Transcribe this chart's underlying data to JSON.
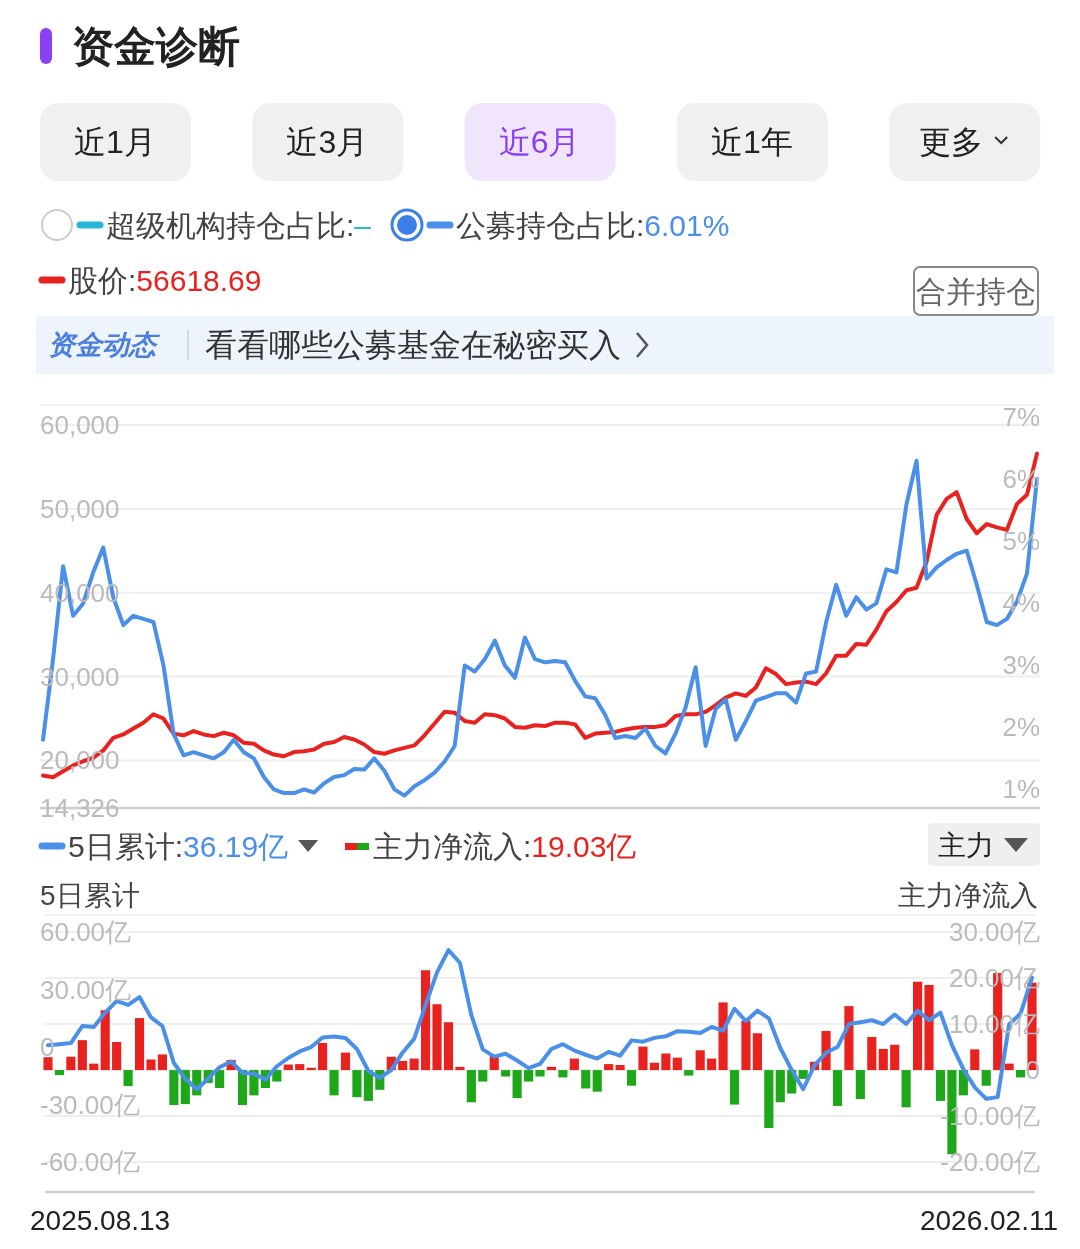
{
  "chart_data": [
    {
      "type": "other",
      "title": "资金诊断",
      "annotations": [
        "近1月",
        "近3月",
        "近6月",
        "近1年",
        "更多",
        "合并持仓",
        "资金动态",
        "看看哪些公募基金在秘密买入"
      ]
    },
    {
      "type": "line",
      "legend": "top",
      "grid": true,
      "categories": [
        null,
        null,
        null,
        null,
        null,
        null,
        null,
        null,
        null,
        null,
        null,
        null,
        null,
        null,
        null,
        null,
        null,
        null,
        null,
        null,
        null,
        null,
        null,
        null,
        null,
        null,
        null,
        null,
        null,
        null,
        null,
        null,
        null,
        null,
        null,
        null,
        null,
        null,
        null,
        null,
        null,
        null,
        null,
        null,
        null,
        null,
        null,
        null,
        null,
        null,
        null,
        null,
        null,
        null,
        null,
        null,
        null,
        null,
        null,
        null,
        null,
        null,
        null,
        null,
        null,
        null,
        null,
        null,
        null,
        null,
        null,
        null,
        null,
        null,
        null,
        null,
        null,
        null,
        null,
        null,
        null,
        null,
        null,
        null,
        null,
        null,
        null,
        null,
        null,
        null,
        null,
        null,
        null,
        null,
        null,
        null,
        null,
        null,
        null,
        null
      ],
      "ylim": [
        14326,
        62400
      ],
      "yticks": [
        {
          "value": 14326,
          "label": "14,326"
        },
        {
          "value": 20000,
          "label": "20,000"
        },
        {
          "value": 30000,
          "label": "30,000"
        },
        {
          "value": 40000,
          "label": "40,000"
        },
        {
          "value": 50000,
          "label": "50,000"
        },
        {
          "value": 60000,
          "label": "60,000"
        }
      ],
      "y2lim": [
        0.7,
        7.2
      ],
      "y2ticks": [
        {
          "value": 1,
          "label": "1%"
        },
        {
          "value": 2,
          "label": "2%"
        },
        {
          "value": 3,
          "label": "3%"
        },
        {
          "value": 4,
          "label": "4%"
        },
        {
          "value": 5,
          "label": "5%"
        },
        {
          "value": 6,
          "label": "6%"
        },
        {
          "value": 7,
          "label": "7%"
        }
      ],
      "series": [
        {
          "name": "股价:56618.69",
          "color": "#e8231f",
          "values": [
            18200,
            18000,
            18700,
            19400,
            19900,
            20300,
            21200,
            22700,
            23100,
            23800,
            24500,
            25500,
            25000,
            23200,
            23000,
            23500,
            23100,
            22900,
            23300,
            23000,
            22100,
            22000,
            21200,
            20700,
            20500,
            21000,
            21100,
            21300,
            22000,
            22200,
            22800,
            22500,
            21900,
            21000,
            20800,
            21200,
            21500,
            21800,
            23000,
            24400,
            25800,
            25700,
            24700,
            24500,
            25500,
            25400,
            25000,
            24000,
            23900,
            24200,
            24100,
            24500,
            24500,
            24300,
            22700,
            23200,
            23300,
            23400,
            23700,
            23900,
            24000,
            24000,
            24200,
            25300,
            25500,
            25500,
            25800,
            26600,
            27500,
            28000,
            27700,
            28700,
            31000,
            30300,
            29100,
            29300,
            29400,
            29100,
            30400,
            32500,
            32500,
            33900,
            33800,
            35600,
            37800,
            38900,
            40300,
            40600,
            43700,
            49300,
            51200,
            52000,
            48800,
            47100,
            48200,
            47800,
            47500,
            50600,
            51700,
            56600
          ]
        },
        {
          "name": "超级机构持仓占比:–",
          "color": "#2ab6d6",
          "axis": "y2",
          "values": [
            null,
            null,
            null,
            null,
            null,
            null,
            null,
            null,
            null,
            null,
            null,
            null,
            null,
            null,
            null,
            null,
            null,
            null,
            null,
            null,
            null,
            null,
            null,
            null,
            null,
            null,
            null,
            null,
            null,
            null,
            null,
            null,
            null,
            null,
            null,
            null,
            null,
            null,
            null,
            null,
            null,
            null,
            null,
            null,
            null,
            null,
            null,
            null,
            null,
            null,
            null,
            null,
            null,
            null,
            null,
            null,
            null,
            null,
            null,
            null,
            null,
            null,
            null,
            null,
            null,
            null,
            null,
            null,
            null,
            null,
            null,
            null,
            null,
            null,
            null,
            null,
            null,
            null,
            null,
            null,
            null,
            null,
            null,
            null,
            null,
            null,
            null,
            null,
            null,
            null,
            null,
            null,
            null,
            null,
            null,
            null,
            null,
            null,
            null,
            null
          ]
        },
        {
          "name": "公募持仓占比:6.01%",
          "color": "#4a8fe8",
          "axis": "y2",
          "values": [
            1.8,
            3.1,
            4.6,
            3.8,
            4.0,
            4.5,
            4.9,
            4.1,
            3.65,
            3.8,
            3.75,
            3.7,
            3.0,
            1.9,
            1.55,
            1.6,
            1.55,
            1.5,
            1.6,
            1.8,
            1.6,
            1.5,
            1.2,
            1.0,
            0.94,
            0.94,
            1.0,
            0.95,
            1.1,
            1.2,
            1.23,
            1.33,
            1.32,
            1.5,
            1.3,
            1.0,
            0.9,
            1.05,
            1.15,
            1.27,
            1.45,
            1.7,
            3.0,
            2.9,
            3.1,
            3.4,
            3.0,
            2.8,
            3.45,
            3.1,
            3.05,
            3.07,
            3.05,
            2.75,
            2.5,
            2.47,
            2.2,
            1.83,
            1.86,
            1.83,
            1.98,
            1.7,
            1.58,
            1.9,
            2.32,
            2.97,
            1.7,
            2.3,
            2.45,
            1.8,
            2.1,
            2.43,
            2.49,
            2.55,
            2.55,
            2.4,
            2.87,
            2.9,
            3.7,
            4.3,
            3.8,
            4.1,
            3.9,
            4.0,
            4.55,
            4.5,
            5.6,
            6.3,
            4.4,
            4.58,
            4.7,
            4.8,
            4.85,
            4.3,
            3.7,
            3.65,
            3.75,
            4.03,
            4.48,
            6.01
          ]
        }
      ]
    },
    {
      "type": "bar",
      "legend": "top",
      "grid": true,
      "ylabel": "5日累计",
      "y2label": "主力净流入",
      "annotations": [
        "主力",
        "2025.08.13",
        "2026.02.11"
      ],
      "categories": [
        null,
        null,
        null,
        null,
        null,
        null,
        null,
        null,
        null,
        null,
        null,
        null,
        null,
        null,
        null,
        null,
        null,
        null,
        null,
        null,
        null,
        null,
        null,
        null,
        null,
        null,
        null,
        null,
        null,
        null,
        null,
        null,
        null,
        null,
        null,
        null,
        null,
        null,
        null,
        null,
        null,
        null,
        null,
        null,
        null,
        null,
        null,
        null,
        null,
        null,
        null,
        null,
        null,
        null,
        null,
        null,
        null,
        null,
        null,
        null,
        null,
        null,
        null,
        null,
        null,
        null,
        null,
        null,
        null,
        null,
        null,
        null,
        null,
        null,
        null,
        null,
        null,
        null,
        null,
        null,
        null,
        null,
        null,
        null,
        null,
        null,
        null
      ],
      "ylim": [
        -75.6,
        68.9
      ],
      "yticks": [
        {
          "value": -60,
          "label": "-60.00亿"
        },
        {
          "value": -30,
          "label": "-30.00亿"
        },
        0,
        {
          "value": 30,
          "label": "30.00亿"
        },
        {
          "value": 60,
          "label": "60.00亿"
        }
      ],
      "y2lim": [
        -26.5,
        33.7
      ],
      "y2ticks": [
        {
          "value": -20,
          "label": "-20.00亿"
        },
        {
          "value": -10,
          "label": "-10.00亿"
        },
        0,
        {
          "value": 10,
          "label": "10.00亿"
        },
        {
          "value": 20,
          "label": "20.00亿"
        },
        {
          "value": 30,
          "label": "30.00亿"
        }
      ],
      "series": [
        {
          "name": "主力净流入:19.03亿",
          "color": "#e8231f",
          "axis": "y2",
          "values": [
            2.8,
            -1.1,
            2.9,
            6.5,
            1.4,
            13.0,
            6.1,
            -3.5,
            11.3,
            2.3,
            3.4,
            -7.6,
            -7.4,
            -5.5,
            -2.8,
            -3.9,
            2.2,
            -7.6,
            -5.5,
            -3.9,
            -2.5,
            1.2,
            1.3,
            0.5,
            5.9,
            -5.5,
            3.8,
            -5.9,
            -6.7,
            -4.3,
            2.9,
            2.0,
            2.5,
            21.7,
            14.3,
            10.4,
            0.7,
            -7.0,
            -2.5,
            3.1,
            -1.4,
            -6.1,
            -2.5,
            -1.4,
            0.7,
            -1.6,
            2.5,
            -4.0,
            -4.7,
            1.3,
            1.1,
            -3.4,
            5.1,
            1.6,
            3.6,
            2.7,
            -1.2,
            4.3,
            2.5,
            14.7,
            -7.5,
            10.7,
            8.0,
            -12.6,
            -7.0,
            -5.1,
            -1.9,
            1.8,
            8.5,
            -7.8,
            13.9,
            -6.3,
            7.2,
            4.6,
            5.5,
            -8.1,
            19.2,
            18.5,
            -6.7,
            -18.3,
            -5.5,
            4.5,
            -3.4,
            21.1,
            1.4,
            -1.6,
            19.0
          ],
          "colors": [
            "#e8231f",
            "#1fa71a",
            "#e8231f",
            "#e8231f",
            "#e8231f",
            "#e8231f",
            "#e8231f",
            "#1fa71a",
            "#e8231f",
            "#e8231f",
            "#e8231f",
            "#1fa71a",
            "#1fa71a",
            "#1fa71a",
            "#1fa71a",
            "#1fa71a",
            "#e8231f",
            "#1fa71a",
            "#1fa71a",
            "#1fa71a",
            "#1fa71a",
            "#e8231f",
            "#e8231f",
            "#e8231f",
            "#e8231f",
            "#1fa71a",
            "#e8231f",
            "#1fa71a",
            "#1fa71a",
            "#1fa71a",
            "#e8231f",
            "#e8231f",
            "#e8231f",
            "#e8231f",
            "#e8231f",
            "#e8231f",
            "#e8231f",
            "#1fa71a",
            "#1fa71a",
            "#e8231f",
            "#1fa71a",
            "#1fa71a",
            "#1fa71a",
            "#1fa71a",
            "#e8231f",
            "#1fa71a",
            "#e8231f",
            "#1fa71a",
            "#1fa71a",
            "#e8231f",
            "#e8231f",
            "#1fa71a",
            "#e8231f",
            "#e8231f",
            "#e8231f",
            "#e8231f",
            "#1fa71a",
            "#e8231f",
            "#e8231f",
            "#e8231f",
            "#1fa71a",
            "#e8231f",
            "#e8231f",
            "#1fa71a",
            "#1fa71a",
            "#1fa71a",
            "#1fa71a",
            "#e8231f",
            "#e8231f",
            "#1fa71a",
            "#e8231f",
            "#1fa71a",
            "#e8231f",
            "#e8231f",
            "#e8231f",
            "#1fa71a",
            "#e8231f",
            "#e8231f",
            "#1fa71a",
            "#1fa71a",
            "#1fa71a",
            "#e8231f",
            "#1fa71a",
            "#e8231f",
            "#e8231f",
            "#1fa71a",
            "#e8231f"
          ]
        },
        {
          "name": "5日累计:36.19亿",
          "type": "line",
          "color": "#4a8fe8",
          "axis": "y",
          "values": [
            1.0,
            1.5,
            2.1,
            11.0,
            10.5,
            18,
            24,
            22,
            26.1,
            15.5,
            11,
            -8.3,
            -16.5,
            -22,
            -16.5,
            -10.5,
            -7.5,
            -13.5,
            -13.8,
            -17,
            -10,
            -5.7,
            -2.3,
            0,
            5,
            5.5,
            4.7,
            -1,
            -12.5,
            -16,
            -12,
            -2.8,
            4.3,
            22,
            39,
            50.6,
            44,
            16.7,
            -1.2,
            -5,
            -3.5,
            -7,
            -11,
            -8.8,
            -1,
            1.5,
            -1.8,
            -4,
            -6,
            -2.5,
            -4.5,
            3.5,
            2.8,
            4.8,
            5.6,
            8.3,
            8,
            7.3,
            10.5,
            8.6,
            20,
            13.5,
            19,
            15,
            -0.5,
            -12,
            -22,
            -9.4,
            -3,
            0,
            12,
            13,
            14,
            12,
            17,
            12,
            19,
            14,
            18,
            1,
            -11.5,
            -21,
            -27,
            -26.1,
            11.8,
            17.5,
            36.2
          ]
        }
      ]
    }
  ]
}
